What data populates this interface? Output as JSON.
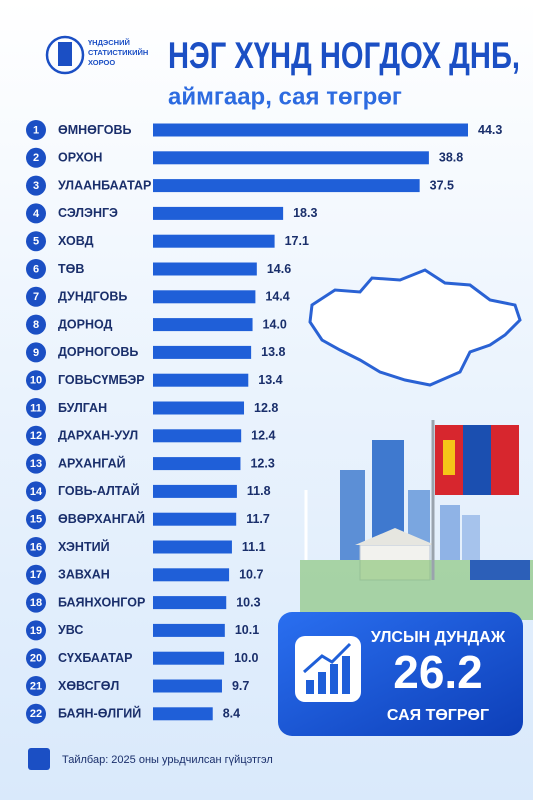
{
  "logo": {
    "lines": [
      "ҮНДЭСНИЙ",
      "СТАТИСТИКИЙН",
      "ХОРОО"
    ]
  },
  "chart_data": {
    "type": "bar",
    "orientation": "horizontal",
    "title": "НЭГ ХҮНД НОГДОХ ДНБ,",
    "subtitle": "аймгаар, сая төгрөг",
    "color": "#1f5fd8",
    "ranks": [
      1,
      2,
      3,
      4,
      5,
      6,
      7,
      8,
      9,
      10,
      11,
      12,
      13,
      14,
      15,
      16,
      17,
      18,
      19,
      20,
      21,
      22
    ],
    "categories": [
      "ӨМНӨГОВЬ",
      "ОРХОН",
      "УЛААНБААТАР",
      "СЭЛЭНГЭ",
      "ХОВД",
      "ТӨВ",
      "ДУНДГОВЬ",
      "ДОРНОД",
      "ДОРНОГОВЬ",
      "ГОВЬСҮМБЭР",
      "БУЛГАН",
      "ДАРХАН-УУЛ",
      "АРХАНГАЙ",
      "ГОВЬ-АЛТАЙ",
      "ӨВӨРХАНГАЙ",
      "ХЭНТИЙ",
      "ЗАВХАН",
      "БАЯНХОНГОР",
      "УВС",
      "СҮХБААТАР",
      "ХӨВСГӨЛ",
      "БАЯН-ӨЛГИЙ"
    ],
    "values": [
      44.3,
      38.8,
      37.5,
      18.3,
      17.1,
      14.6,
      14.4,
      14.0,
      13.8,
      13.4,
      12.8,
      12.4,
      12.3,
      11.8,
      11.7,
      11.1,
      10.7,
      10.3,
      10.1,
      10.0,
      9.7,
      8.4
    ],
    "value_labels": [
      "44.3",
      "38.8",
      "37.5",
      "18.3",
      "17.1",
      "14.6",
      "14.4",
      "14.0",
      "13.8",
      "13.4",
      "12.8",
      "12.4",
      "12.3",
      "11.8",
      "11.7",
      "11.1",
      "10.7",
      "10.3",
      "10.1",
      "10.0",
      "9.7",
      "8.4"
    ]
  },
  "average": {
    "label": "УЛСЫН ДУНДАЖ",
    "value": 26.2,
    "unit": "САЯ ТӨГРӨГ"
  },
  "footnote": "Тайлбар: 2025 оны урьдчилсан гүйцэтгэл"
}
